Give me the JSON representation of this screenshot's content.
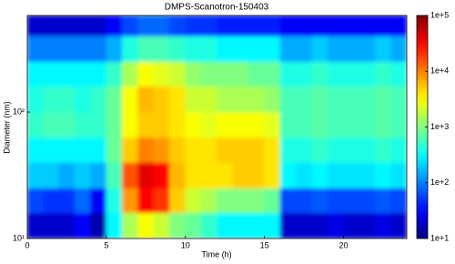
{
  "chart_data": {
    "type": "heatmap",
    "title": "DMPS-Scanotron-150403",
    "xlabel": "Time (h)",
    "ylabel": "Diameter (nm)",
    "x": [
      0,
      1,
      2,
      3,
      4,
      5,
      6,
      7,
      8,
      9,
      10,
      11,
      12,
      13,
      14,
      15,
      16,
      17,
      18,
      19,
      20,
      21,
      22,
      23,
      24
    ],
    "y": [
      10,
      16,
      25,
      40,
      63,
      100,
      160,
      250,
      400,
      580
    ],
    "z": [
      [
        20,
        20,
        20,
        30,
        15,
        300,
        1500,
        3000,
        2000,
        1000,
        800,
        500,
        300,
        300,
        300,
        300,
        20,
        20,
        20,
        25,
        20,
        20,
        25,
        20
      ],
      [
        60,
        50,
        50,
        80,
        30,
        400,
        8000,
        30000,
        20000,
        5000,
        2000,
        1500,
        1000,
        1000,
        1000,
        800,
        60,
        60,
        70,
        60,
        60,
        60,
        70,
        60
      ],
      [
        200,
        200,
        150,
        200,
        150,
        600,
        15000,
        40000,
        30000,
        6000,
        4000,
        4000,
        4000,
        5000,
        5000,
        4000,
        300,
        250,
        300,
        250,
        250,
        250,
        300,
        250
      ],
      [
        300,
        300,
        300,
        300,
        300,
        800,
        5000,
        10000,
        8000,
        5000,
        4000,
        4000,
        5000,
        5000,
        5000,
        4000,
        400,
        400,
        500,
        400,
        400,
        400,
        500,
        400
      ],
      [
        500,
        600,
        600,
        500,
        500,
        800,
        3000,
        5000,
        5000,
        4000,
        3000,
        2500,
        3000,
        3000,
        3000,
        2500,
        600,
        600,
        700,
        600,
        600,
        600,
        700,
        600
      ],
      [
        400,
        500,
        500,
        400,
        500,
        800,
        3000,
        6000,
        5000,
        4000,
        2000,
        2000,
        1500,
        1500,
        1500,
        1200,
        600,
        600,
        700,
        600,
        600,
        600,
        700,
        600
      ],
      [
        300,
        300,
        300,
        300,
        300,
        500,
        1500,
        3000,
        2500,
        2000,
        1200,
        1000,
        1000,
        1000,
        800,
        800,
        400,
        400,
        500,
        400,
        400,
        400,
        500,
        400
      ],
      [
        100,
        100,
        100,
        100,
        100,
        150,
        400,
        600,
        600,
        500,
        400,
        400,
        300,
        300,
        300,
        300,
        150,
        150,
        200,
        150,
        150,
        150,
        200,
        150
      ],
      [
        20,
        20,
        20,
        20,
        20,
        30,
        60,
        80,
        80,
        60,
        50,
        50,
        40,
        40,
        40,
        40,
        30,
        30,
        30,
        30,
        30,
        30,
        30,
        30
      ]
    ],
    "colormap": "jet",
    "log_color": true,
    "log_y": true,
    "xlim": [
      0,
      24
    ],
    "xticks": [
      0,
      5,
      10,
      15,
      20
    ],
    "ylim": [
      10,
      580
    ],
    "yticks": [
      {
        "value": 10,
        "label": "10¹"
      },
      {
        "value": 100,
        "label": "10²"
      }
    ],
    "clim": [
      10,
      100000
    ],
    "cticks": [
      {
        "value": 10,
        "label": "1e+1"
      },
      {
        "value": 100,
        "label": "1e+2"
      },
      {
        "value": 1000,
        "label": "1e+3"
      },
      {
        "value": 10000,
        "label": "1e+4"
      },
      {
        "value": 100000,
        "label": "1e+5"
      }
    ]
  }
}
